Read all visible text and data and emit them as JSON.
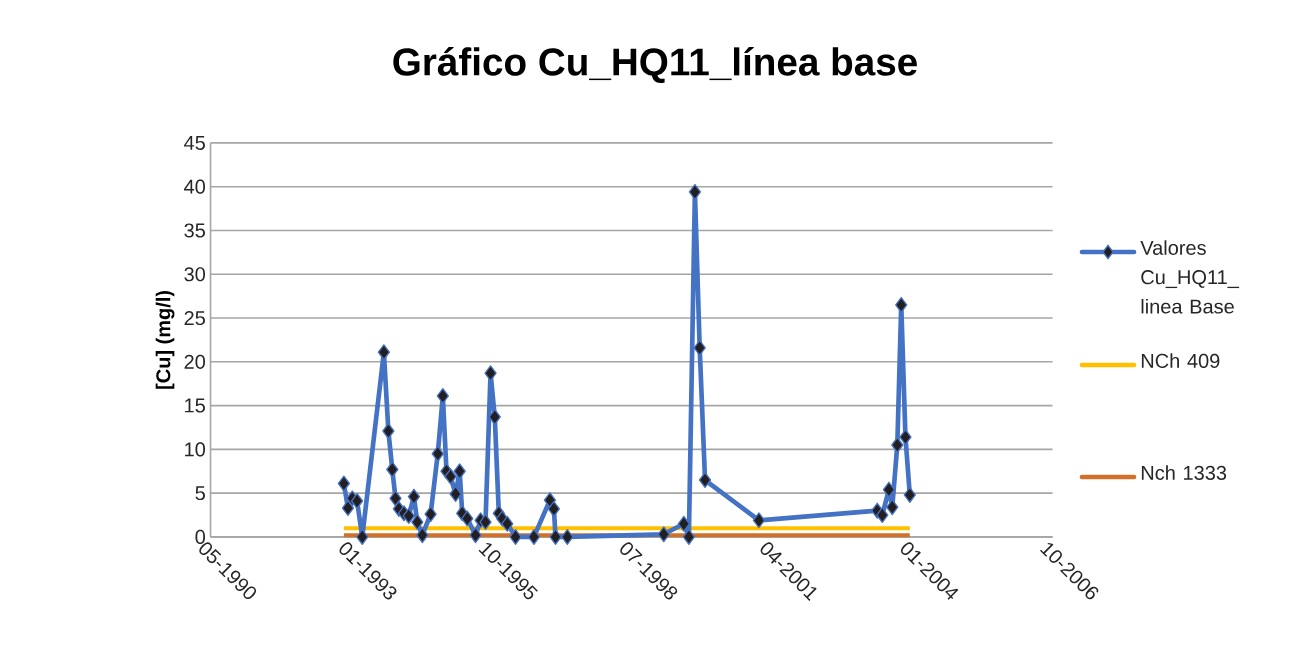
{
  "chart_data": {
    "type": "line",
    "title": "Gráfico Cu_HQ11_línea base",
    "ylabel": "[Cu] (mg/l)",
    "xlim": [
      "1990-05-08",
      "2006-10-10"
    ],
    "xticks": [
      {
        "value": "1990-05-08",
        "label": "05-1990"
      },
      {
        "value": "1993-01-31",
        "label": "01-1993"
      },
      {
        "value": "1995-10-28",
        "label": "10-1995"
      },
      {
        "value": "1998-07-24",
        "label": "07-1998"
      },
      {
        "value": "2001-04-19",
        "label": "04-2001"
      },
      {
        "value": "2004-01-14",
        "label": "01-2004"
      },
      {
        "value": "2006-10-10",
        "label": "10-2006"
      }
    ],
    "ylim": [
      0,
      45
    ],
    "yticks": [
      0,
      5,
      10,
      15,
      20,
      25,
      30,
      35,
      40,
      45
    ],
    "grid": "y",
    "legend": "right",
    "marker": "diamond",
    "series": [
      {
        "name": "Valores Cu_HQ11_ linea Base",
        "color": "#4472c4",
        "x": [
          "1992-12-13",
          "1993-01-11",
          "1993-02-11",
          "1993-03-17",
          "1993-04-23",
          "1993-09-24",
          "1993-10-26",
          "1993-11-23",
          "1993-12-16",
          "1994-01-09",
          "1994-02-14",
          "1994-03-20",
          "1994-04-26",
          "1994-05-20",
          "1994-06-25",
          "1994-08-23",
          "1994-10-13",
          "1994-11-18",
          "1994-12-14",
          "1995-01-12",
          "1995-02-17",
          "1995-03-18",
          "1995-04-05",
          "1995-05-11",
          "1995-07-09",
          "1995-08-14",
          "1995-09-18",
          "1995-10-24",
          "1995-11-23",
          "1995-12-22",
          "1996-01-15",
          "1996-02-20",
          "1996-04-19",
          "1996-08-28",
          "1996-12-20",
          "1997-01-17",
          "1997-01-29",
          "1997-04-23",
          "1999-03-11",
          "1999-08-01",
          "1999-09-06",
          "1999-10-19",
          "1999-11-22",
          "1999-12-30",
          "2001-01-17",
          "2003-05-10",
          "2003-06-15",
          "2003-08-01",
          "2003-08-25",
          "2003-09-30",
          "2003-10-28",
          "2003-11-27",
          "2003-12-28"
        ],
        "values": [
          6.1,
          3.3,
          4.4,
          4.1,
          0,
          21.1,
          12.1,
          7.7,
          4.4,
          3.2,
          2.7,
          2.4,
          4.6,
          1.7,
          0.2,
          2.6,
          9.5,
          16.1,
          7.5,
          6.9,
          4.9,
          7.5,
          2.7,
          2.1,
          0.2,
          1.9,
          1.7,
          18.7,
          13.7,
          2.7,
          2.1,
          1.5,
          0,
          0,
          4.2,
          3.2,
          0,
          0,
          0.3,
          1.5,
          0,
          39.4,
          21.6,
          6.5,
          1.9,
          3.0,
          2.5,
          5.4,
          3.4,
          10.5,
          26.5,
          11.4,
          4.8
        ]
      },
      {
        "name": "NCh 409",
        "color": "#ffc000",
        "marker": "none",
        "x": [
          "1992-12-13",
          "2003-12-28"
        ],
        "values": [
          1,
          1
        ]
      },
      {
        "name": "Nch 1333",
        "color": "#d2702a",
        "marker": "none",
        "x": [
          "1992-12-13",
          "2003-12-28"
        ],
        "values": [
          0.2,
          0.2
        ]
      }
    ]
  }
}
